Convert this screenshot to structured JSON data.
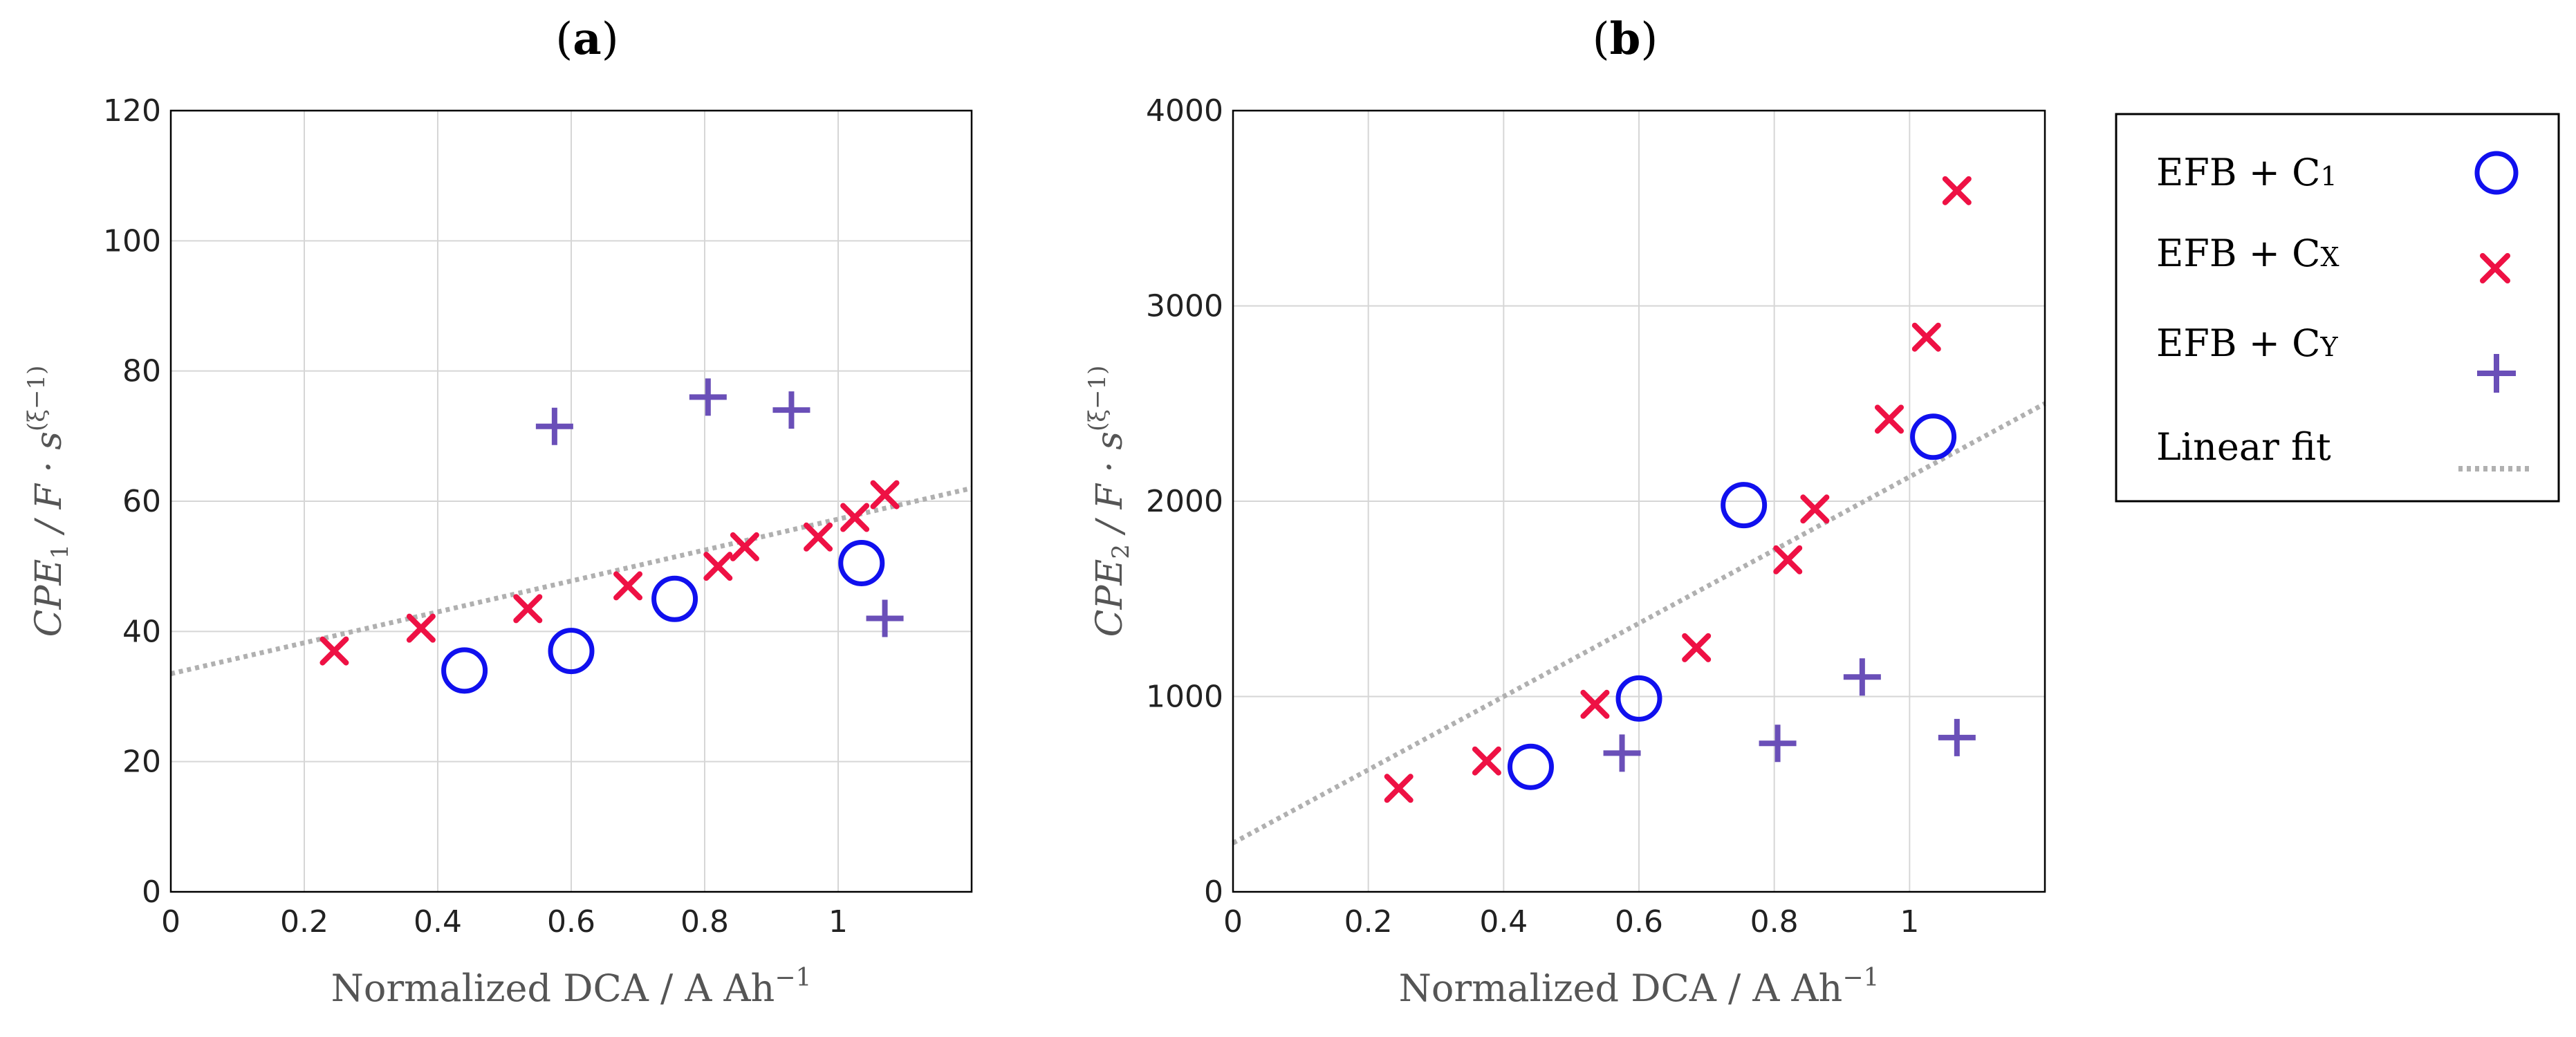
{
  "chart_data": [
    {
      "id": "a",
      "type": "scatter",
      "title": "a",
      "xlabel": "Normalized DCA / A Ah",
      "xlabel_sup": "−1",
      "ylabel_main": "CPE",
      "ylabel_sub": "1",
      "ylabel_rest": " / F · s",
      "ylabel_sup": "(ξ−1)",
      "xlim": [
        0,
        1.2
      ],
      "ylim": [
        0,
        120
      ],
      "xticks": [
        0,
        0.2,
        0.4,
        0.6,
        0.8,
        1
      ],
      "yticks": [
        0,
        20,
        40,
        60,
        80,
        100,
        120
      ],
      "xtick_labels": [
        "0",
        "0.2",
        "0.4",
        "0.6",
        "0.8",
        "1"
      ],
      "ytick_labels": [
        "0",
        "20",
        "40",
        "60",
        "80",
        "100",
        "120"
      ],
      "grid": true,
      "series": [
        {
          "name": "EFB + C1",
          "marker": "circle",
          "x": [
            0.44,
            0.6,
            0.755,
            1.035
          ],
          "y": [
            34,
            37,
            45,
            50.5
          ]
        },
        {
          "name": "EFB + CX",
          "marker": "x",
          "x": [
            0.245,
            0.375,
            0.535,
            0.685,
            0.82,
            0.86,
            0.97,
            1.025,
            1.07
          ],
          "y": [
            37,
            40.5,
            43.5,
            47,
            50,
            53,
            54.5,
            57.5,
            61
          ]
        },
        {
          "name": "EFB + CY",
          "marker": "plus",
          "x": [
            0.575,
            0.805,
            0.93,
            1.07
          ],
          "y": [
            71.5,
            76,
            74,
            42
          ]
        }
      ],
      "fit": {
        "name": "Linear fit",
        "x": [
          0,
          1.2
        ],
        "y": [
          33.5,
          62
        ]
      }
    },
    {
      "id": "b",
      "type": "scatter",
      "title": "b",
      "xlabel": "Normalized DCA / A Ah",
      "xlabel_sup": "−1",
      "ylabel_main": "CPE",
      "ylabel_sub": "2",
      "ylabel_rest": " / F · s",
      "ylabel_sup": "(ξ−1)",
      "xlim": [
        0,
        1.2
      ],
      "ylim": [
        0,
        4000
      ],
      "xticks": [
        0,
        0.2,
        0.4,
        0.6,
        0.8,
        1
      ],
      "yticks": [
        0,
        1000,
        2000,
        3000,
        4000
      ],
      "xtick_labels": [
        "0",
        "0.2",
        "0.4",
        "0.6",
        "0.8",
        "1"
      ],
      "ytick_labels": [
        "0",
        "1000",
        "2000",
        "3000",
        "4000"
      ],
      "grid": true,
      "series": [
        {
          "name": "EFB + C1",
          "marker": "circle",
          "x": [
            0.44,
            0.6,
            0.755,
            1.035
          ],
          "y": [
            640,
            990,
            1980,
            2330
          ]
        },
        {
          "name": "EFB + CX",
          "marker": "x",
          "x": [
            0.245,
            0.375,
            0.535,
            0.685,
            0.82,
            0.86,
            0.97,
            1.025,
            1.07
          ],
          "y": [
            530,
            670,
            960,
            1250,
            1700,
            1960,
            2420,
            2840,
            3590
          ]
        },
        {
          "name": "EFB + CY",
          "marker": "plus",
          "x": [
            0.575,
            0.805,
            0.93,
            1.07
          ],
          "y": [
            710,
            760,
            1100,
            790
          ]
        }
      ],
      "fit": {
        "name": "Linear fit",
        "x": [
          0,
          1.2
        ],
        "y": [
          250,
          2500
        ]
      }
    }
  ],
  "legend": {
    "items": [
      {
        "label_main": "EFB + C",
        "label_sub": "1",
        "marker": "circle"
      },
      {
        "label_main": "EFB + C",
        "label_sub": "X",
        "marker": "x"
      },
      {
        "label_main": "EFB + C",
        "label_sub": "Y",
        "marker": "plus"
      },
      {
        "label_main": "Linear fit",
        "label_sub": "",
        "marker": "dotted-line"
      }
    ]
  },
  "colors": {
    "circle": "#1010ee",
    "x": "#ee1144",
    "plus": "#6a4fb8",
    "fit": "#b0b0b0",
    "grid": "#d6d6d6",
    "axis": "#000000"
  }
}
